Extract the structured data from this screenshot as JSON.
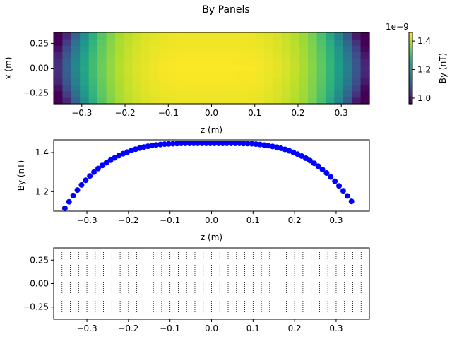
{
  "colors": {
    "marker": "#0000ff",
    "axis": "#000000",
    "colormap": "viridis"
  },
  "chart_data": [
    {
      "type": "heatmap",
      "title": "By Panels",
      "xlabel": "z (m)",
      "ylabel": "x (m)",
      "xlim": [
        -0.365,
        0.365
      ],
      "ylim": [
        -0.36,
        0.36
      ],
      "xticks": [
        "−0.3",
        "−0.2",
        "−0.1",
        "0.0",
        "0.1",
        "0.2",
        "0.3"
      ],
      "yticks": [
        "0.25",
        "0.00",
        "−0.25"
      ],
      "z_profile_center": [
        [
          -0.353,
          1.115
        ],
        [
          -0.343,
          1.148
        ],
        [
          -0.333,
          1.18
        ],
        [
          -0.323,
          1.208
        ],
        [
          -0.313,
          1.234
        ],
        [
          -0.303,
          1.258
        ],
        [
          -0.293,
          1.28
        ],
        [
          -0.283,
          1.3
        ],
        [
          -0.273,
          1.318
        ],
        [
          -0.263,
          1.334
        ],
        [
          -0.253,
          1.348
        ],
        [
          -0.243,
          1.361
        ],
        [
          -0.233,
          1.373
        ],
        [
          -0.223,
          1.384
        ],
        [
          -0.213,
          1.394
        ],
        [
          -0.203,
          1.402
        ],
        [
          -0.193,
          1.41
        ],
        [
          -0.183,
          1.417
        ],
        [
          -0.173,
          1.423
        ],
        [
          -0.163,
          1.428
        ],
        [
          -0.153,
          1.432
        ],
        [
          -0.143,
          1.436
        ],
        [
          -0.133,
          1.439
        ],
        [
          -0.123,
          1.441
        ],
        [
          -0.113,
          1.443
        ],
        [
          -0.103,
          1.444
        ],
        [
          -0.093,
          1.445
        ],
        [
          -0.083,
          1.446
        ],
        [
          -0.073,
          1.447
        ],
        [
          -0.063,
          1.447
        ],
        [
          -0.053,
          1.447
        ],
        [
          -0.043,
          1.447
        ],
        [
          -0.033,
          1.447
        ],
        [
          -0.023,
          1.447
        ],
        [
          -0.013,
          1.447
        ],
        [
          -0.003,
          1.447
        ],
        [
          0.007,
          1.447
        ],
        [
          0.017,
          1.447
        ],
        [
          0.027,
          1.447
        ],
        [
          0.037,
          1.447
        ],
        [
          0.047,
          1.447
        ],
        [
          0.057,
          1.447
        ],
        [
          0.067,
          1.447
        ],
        [
          0.077,
          1.446
        ],
        [
          0.087,
          1.446
        ],
        [
          0.097,
          1.445
        ],
        [
          0.107,
          1.443
        ],
        [
          0.117,
          1.441
        ],
        [
          0.127,
          1.438
        ],
        [
          0.137,
          1.435
        ],
        [
          0.147,
          1.431
        ],
        [
          0.157,
          1.427
        ],
        [
          0.167,
          1.422
        ],
        [
          0.177,
          1.416
        ],
        [
          0.187,
          1.409
        ],
        [
          0.197,
          1.401
        ],
        [
          0.207,
          1.392
        ],
        [
          0.217,
          1.382
        ],
        [
          0.227,
          1.371
        ],
        [
          0.237,
          1.359
        ],
        [
          0.247,
          1.345
        ],
        [
          0.257,
          1.33
        ],
        [
          0.267,
          1.313
        ],
        [
          0.277,
          1.295
        ],
        [
          0.287,
          1.275
        ],
        [
          0.297,
          1.253
        ],
        [
          0.307,
          1.229
        ],
        [
          0.317,
          1.204
        ],
        [
          0.327,
          1.178
        ],
        [
          0.337,
          1.15
        ]
      ],
      "edge_dip": 0.28,
      "x_rows": 11,
      "colorbar": {
        "label": "By (nT)",
        "offset_text": "1e−9",
        "range": [
          0.96,
          1.46
        ],
        "ticks": [
          "1.4",
          "1.2",
          "1.0"
        ],
        "tick_values": [
          1.4,
          1.2,
          1.0
        ]
      }
    },
    {
      "type": "scatter",
      "xlabel": "z (m)",
      "ylabel": "By (nT)",
      "xlim": [
        -0.38,
        0.38
      ],
      "ylim": [
        1.1,
        1.465
      ],
      "xticks": [
        "−0.3",
        "−0.2",
        "−0.1",
        "0.0",
        "0.1",
        "0.2",
        "0.3"
      ],
      "yticks": [
        "1.4",
        "1.2"
      ],
      "ytick_values": [
        1.4,
        1.2
      ],
      "series": [
        {
          "points": [
            [
              -0.353,
              1.115
            ],
            [
              -0.343,
              1.148
            ],
            [
              -0.333,
              1.18
            ],
            [
              -0.323,
              1.208
            ],
            [
              -0.313,
              1.234
            ],
            [
              -0.303,
              1.258
            ],
            [
              -0.293,
              1.28
            ],
            [
              -0.283,
              1.3
            ],
            [
              -0.273,
              1.318
            ],
            [
              -0.263,
              1.334
            ],
            [
              -0.253,
              1.348
            ],
            [
              -0.243,
              1.361
            ],
            [
              -0.233,
              1.373
            ],
            [
              -0.223,
              1.384
            ],
            [
              -0.213,
              1.394
            ],
            [
              -0.203,
              1.402
            ],
            [
              -0.193,
              1.41
            ],
            [
              -0.183,
              1.417
            ],
            [
              -0.173,
              1.423
            ],
            [
              -0.163,
              1.428
            ],
            [
              -0.153,
              1.432
            ],
            [
              -0.143,
              1.436
            ],
            [
              -0.133,
              1.439
            ],
            [
              -0.123,
              1.441
            ],
            [
              -0.113,
              1.443
            ],
            [
              -0.103,
              1.444
            ],
            [
              -0.093,
              1.445
            ],
            [
              -0.083,
              1.446
            ],
            [
              -0.073,
              1.447
            ],
            [
              -0.063,
              1.447
            ],
            [
              -0.053,
              1.447
            ],
            [
              -0.043,
              1.447
            ],
            [
              -0.033,
              1.447
            ],
            [
              -0.023,
              1.447
            ],
            [
              -0.013,
              1.447
            ],
            [
              -0.003,
              1.447
            ],
            [
              0.007,
              1.447
            ],
            [
              0.017,
              1.447
            ],
            [
              0.027,
              1.447
            ],
            [
              0.037,
              1.447
            ],
            [
              0.047,
              1.447
            ],
            [
              0.057,
              1.447
            ],
            [
              0.067,
              1.447
            ],
            [
              0.077,
              1.446
            ],
            [
              0.087,
              1.446
            ],
            [
              0.097,
              1.445
            ],
            [
              0.107,
              1.443
            ],
            [
              0.117,
              1.441
            ],
            [
              0.127,
              1.438
            ],
            [
              0.137,
              1.435
            ],
            [
              0.147,
              1.431
            ],
            [
              0.157,
              1.427
            ],
            [
              0.167,
              1.422
            ],
            [
              0.177,
              1.416
            ],
            [
              0.187,
              1.409
            ],
            [
              0.197,
              1.401
            ],
            [
              0.207,
              1.392
            ],
            [
              0.217,
              1.382
            ],
            [
              0.227,
              1.371
            ],
            [
              0.237,
              1.359
            ],
            [
              0.247,
              1.345
            ],
            [
              0.257,
              1.33
            ],
            [
              0.267,
              1.313
            ],
            [
              0.277,
              1.295
            ],
            [
              0.287,
              1.275
            ],
            [
              0.297,
              1.253
            ],
            [
              0.307,
              1.229
            ],
            [
              0.317,
              1.204
            ],
            [
              0.327,
              1.178
            ],
            [
              0.337,
              1.15
            ]
          ]
        }
      ]
    },
    {
      "type": "scatter",
      "xlim": [
        -0.38,
        0.38
      ],
      "ylim": [
        -0.38,
        0.38
      ],
      "xticks": [
        "−0.3",
        "−0.2",
        "−0.1",
        "0.0",
        "0.1",
        "0.2",
        "0.3"
      ],
      "yticks": [
        "0.25",
        "0.00",
        "−0.25"
      ],
      "ytick_values": [
        0.25,
        0.0,
        -0.25
      ],
      "line_z": [
        -0.36,
        -0.34,
        -0.32,
        -0.3,
        -0.28,
        -0.26,
        -0.24,
        -0.22,
        -0.2,
        -0.18,
        -0.16,
        -0.14,
        -0.12,
        -0.1,
        -0.08,
        -0.06,
        -0.04,
        -0.02,
        0.0,
        0.02,
        0.04,
        0.06,
        0.08,
        0.1,
        0.12,
        0.14,
        0.16,
        0.18,
        0.2,
        0.22,
        0.24,
        0.26,
        0.28,
        0.3,
        0.32,
        0.34,
        0.36
      ],
      "line_x_range": [
        -0.35,
        0.35
      ],
      "line_style": "dotted"
    }
  ]
}
